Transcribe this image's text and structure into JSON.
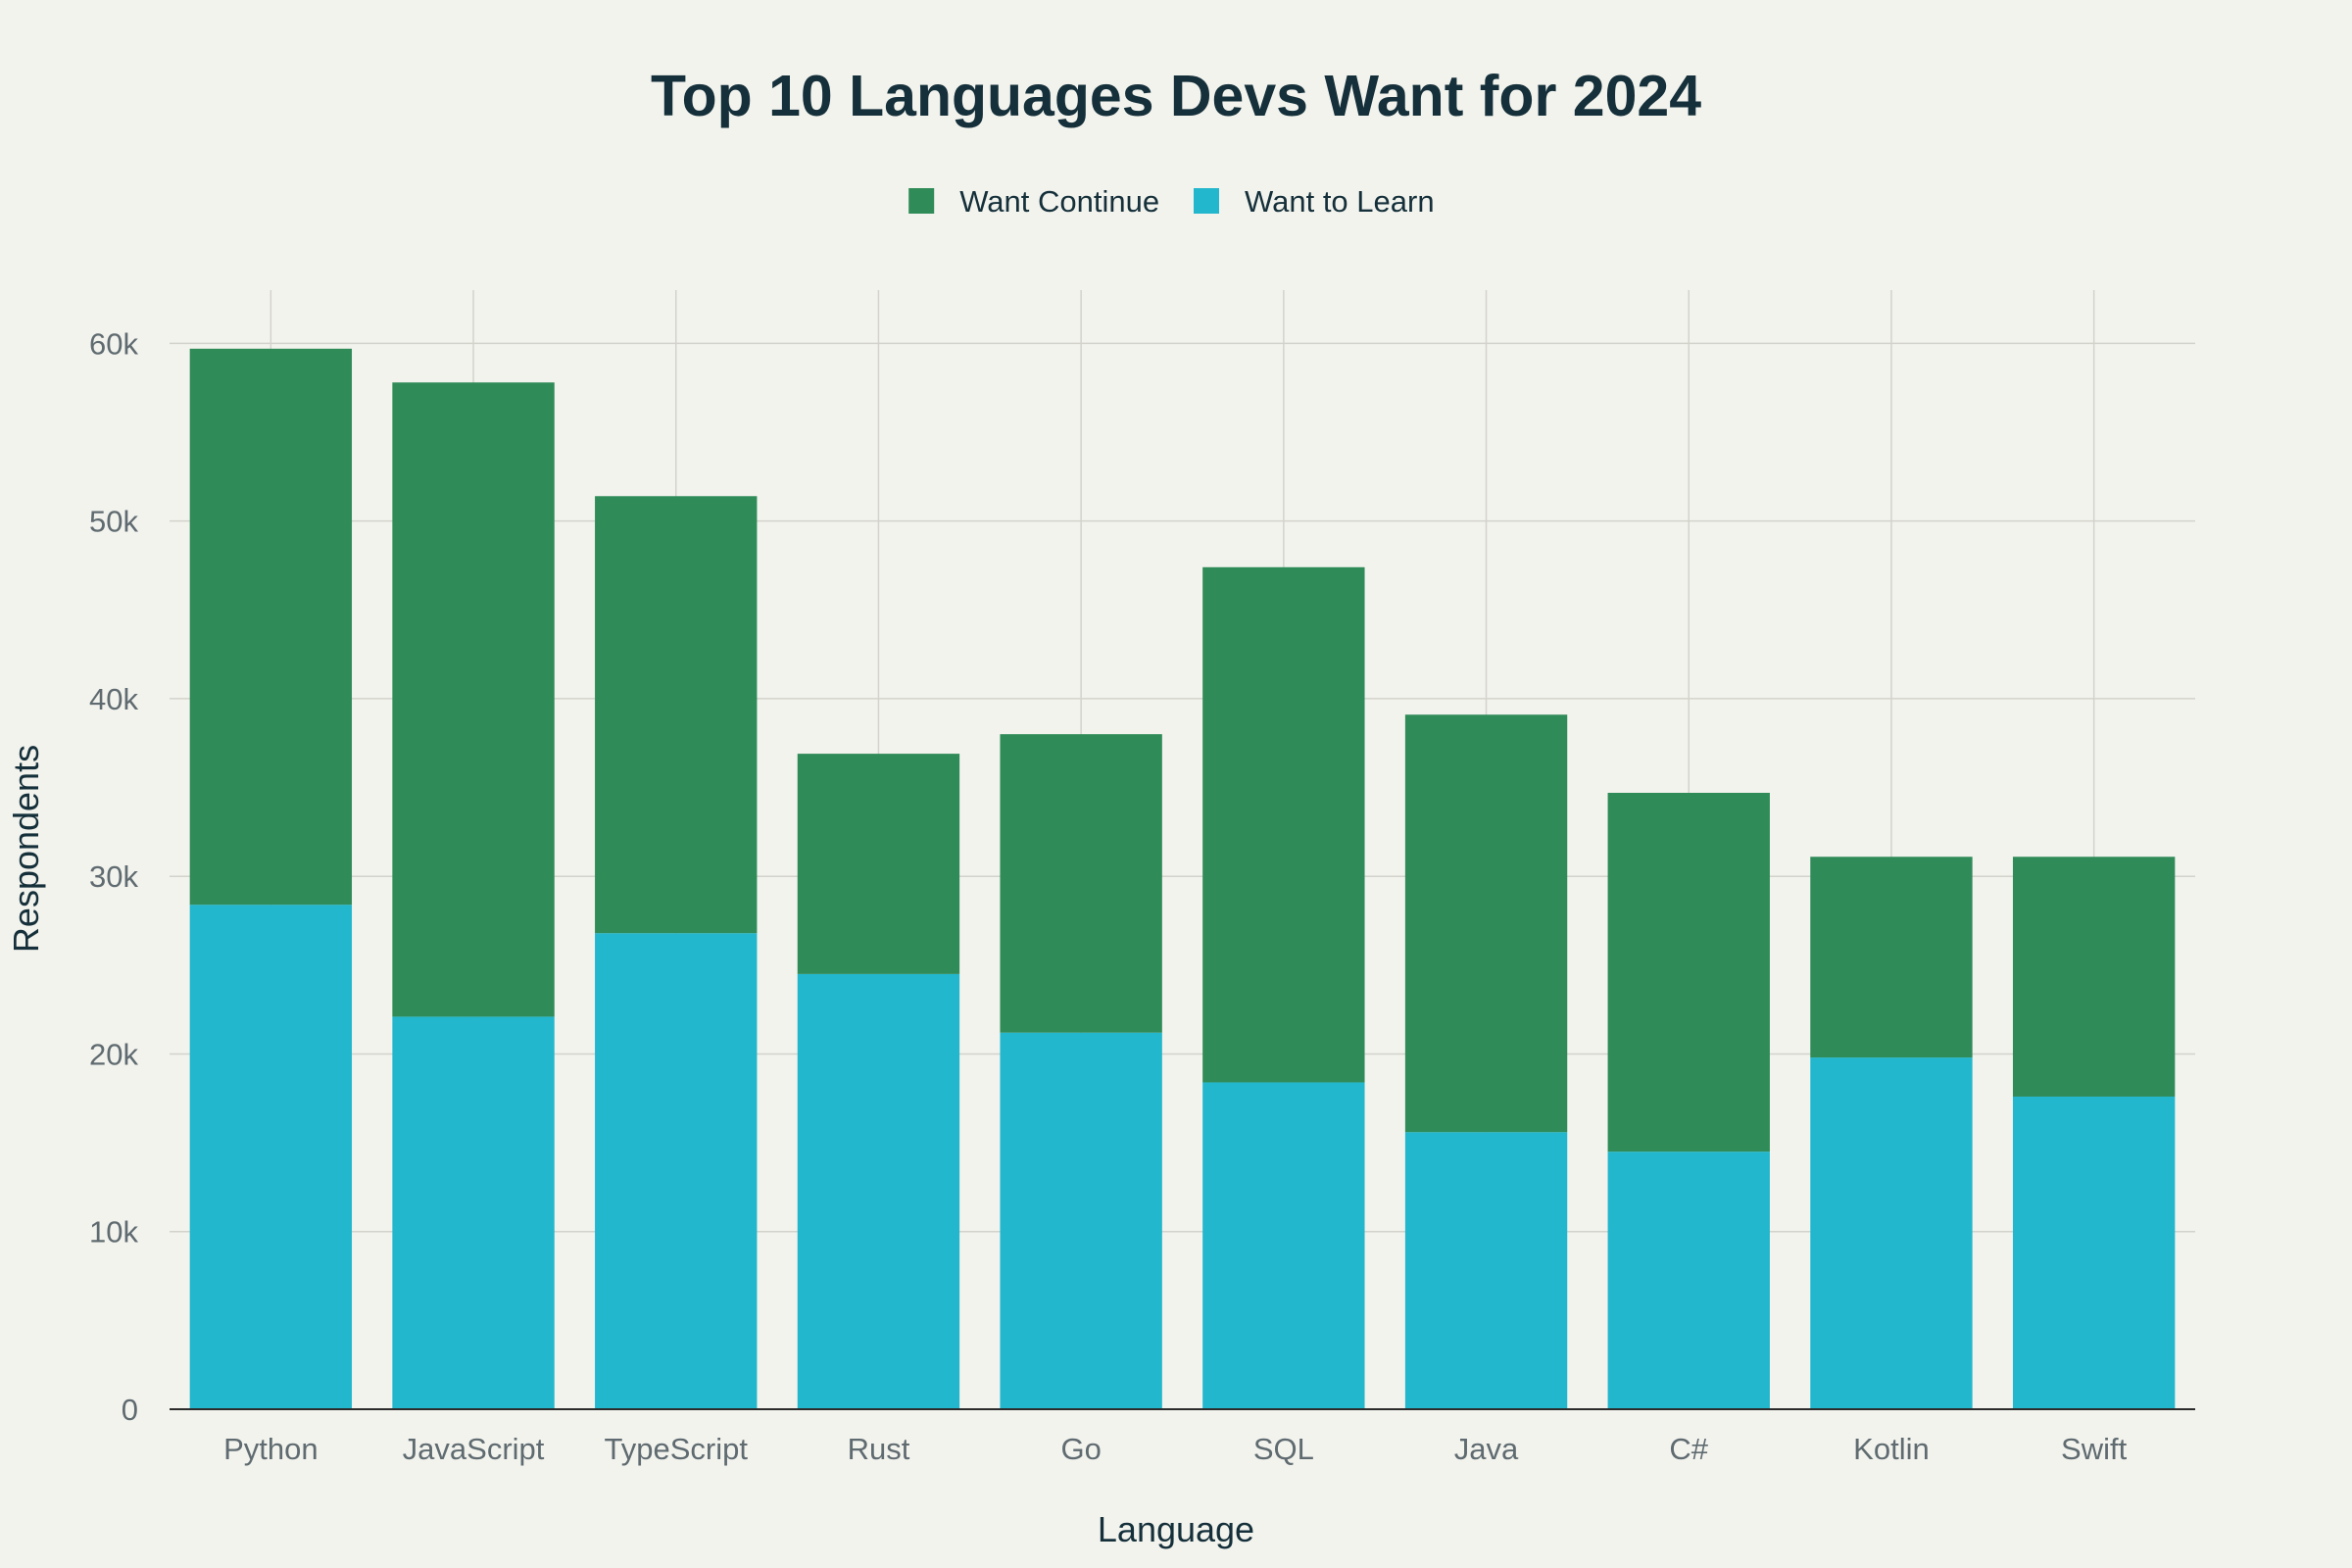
{
  "chart_data": {
    "type": "bar",
    "stacked": true,
    "title": "Top 10 Languages Devs Want for 2024",
    "xlabel": "Language",
    "ylabel": "Respondents",
    "categories": [
      "Python",
      "JavaScript",
      "TypeScript",
      "Rust",
      "Go",
      "SQL",
      "Java",
      "C#",
      "Kotlin",
      "Swift"
    ],
    "series": [
      {
        "name": "Want to Learn",
        "color": "#22b7cc",
        "values": [
          28400,
          22100,
          26800,
          24500,
          21200,
          18400,
          15600,
          14500,
          19800,
          17600
        ]
      },
      {
        "name": "Want Continue",
        "color": "#2f8b58",
        "values": [
          31300,
          35700,
          24600,
          12400,
          16800,
          29000,
          23500,
          20200,
          11300,
          13500
        ]
      }
    ],
    "legend_order": [
      "Want Continue",
      "Want to Learn"
    ],
    "legend_position": "top-center",
    "ylim": [
      0,
      63000
    ],
    "yticks": [
      0,
      10000,
      20000,
      30000,
      40000,
      50000,
      60000
    ],
    "ytick_labels": [
      "0",
      "10k",
      "20k",
      "30k",
      "40k",
      "50k",
      "60k"
    ],
    "grid": true
  }
}
